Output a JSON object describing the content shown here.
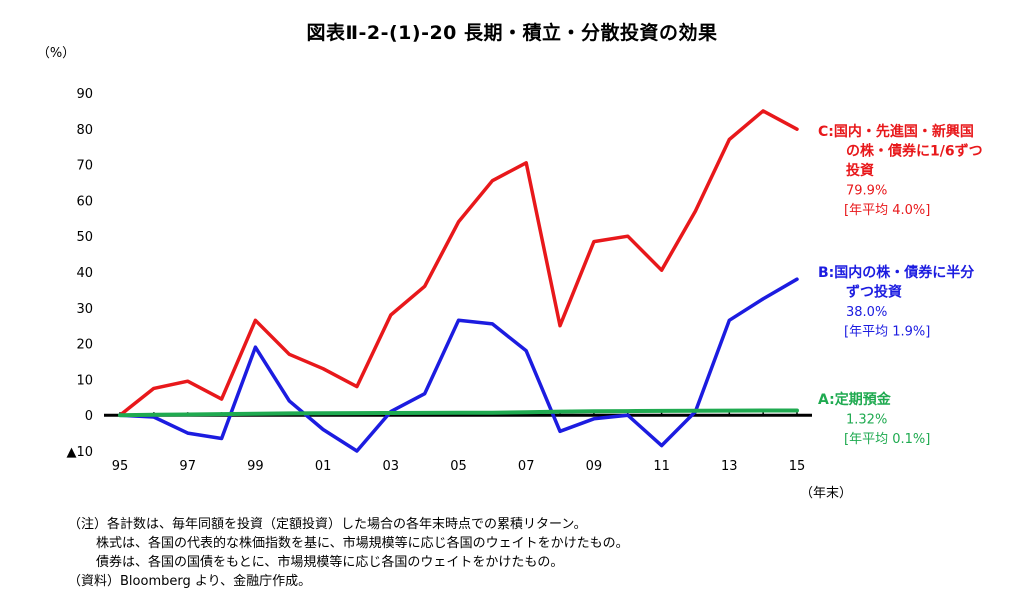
{
  "chart_data": {
    "type": "line",
    "title": "図表Ⅱ-2-(1)-20 長期・積立・分散投資の効果",
    "ylabel": "（%）",
    "xlabel": "（年末）",
    "ylim": [
      -10,
      90
    ],
    "y_ticks": [
      {
        "value": 90,
        "label": "90"
      },
      {
        "value": 80,
        "label": "80"
      },
      {
        "value": 70,
        "label": "70"
      },
      {
        "value": 60,
        "label": "60"
      },
      {
        "value": 50,
        "label": "50"
      },
      {
        "value": 40,
        "label": "40"
      },
      {
        "value": 30,
        "label": "30"
      },
      {
        "value": 20,
        "label": "20"
      },
      {
        "value": 10,
        "label": "10"
      },
      {
        "value": 0,
        "label": "0"
      },
      {
        "value": -10,
        "label": "▲10"
      }
    ],
    "x": [
      1995,
      1996,
      1997,
      1998,
      1999,
      2000,
      2001,
      2002,
      2003,
      2004,
      2005,
      2006,
      2007,
      2008,
      2009,
      2010,
      2011,
      2012,
      2013,
      2014,
      2015
    ],
    "x_ticks": [
      {
        "value": 1995,
        "label": "95"
      },
      {
        "value": 1997,
        "label": "97"
      },
      {
        "value": 1999,
        "label": "99"
      },
      {
        "value": 2001,
        "label": "01"
      },
      {
        "value": 2003,
        "label": "03"
      },
      {
        "value": 2005,
        "label": "05"
      },
      {
        "value": 2007,
        "label": "07"
      },
      {
        "value": 2009,
        "label": "09"
      },
      {
        "value": 2011,
        "label": "11"
      },
      {
        "value": 2013,
        "label": "13"
      },
      {
        "value": 2015,
        "label": "15"
      }
    ],
    "series": [
      {
        "key": "C",
        "color": "#e8181b",
        "values": [
          0,
          7.5,
          9.5,
          4.5,
          26.5,
          17,
          13,
          8,
          28,
          36,
          54,
          65.5,
          70.5,
          25,
          48.5,
          50,
          40.5,
          57,
          77,
          85,
          79.9
        ],
        "label_lines": [
          "C:国内・先進国・新興国",
          "の株・債券に1/6ずつ",
          "投資"
        ],
        "value_label": "79.9%",
        "avg_label": "[年平均 4.0%]"
      },
      {
        "key": "B",
        "color": "#1c1ce0",
        "values": [
          0,
          -0.5,
          -5,
          -6.5,
          19,
          4,
          -4,
          -10,
          1,
          6,
          26.5,
          25.5,
          18,
          -4.5,
          -1,
          0,
          -8.5,
          1,
          26.5,
          32.5,
          38
        ],
        "label_lines": [
          "B:国内の株・債券に半分",
          "ずつ投資"
        ],
        "value_label": "38.0%",
        "avg_label": "[年平均 1.9%]"
      },
      {
        "key": "A",
        "color": "#1faa50",
        "values": [
          0,
          0.1,
          0.2,
          0.3,
          0.4,
          0.5,
          0.55,
          0.6,
          0.62,
          0.64,
          0.66,
          0.7,
          0.8,
          1.0,
          1.1,
          1.15,
          1.2,
          1.25,
          1.28,
          1.3,
          1.32
        ],
        "label_lines": [
          "A:定期預金"
        ],
        "value_label": "1.32%",
        "avg_label": "[年平均 0.1%]"
      }
    ]
  },
  "notes": {
    "line1": "（注）各計数は、毎年同額を投資（定額投資）した場合の各年末時点での累積リターン。",
    "line2": "株式は、各国の代表的な株価指数を基に、市場規模等に応じ各国のウェイトをかけたもの。",
    "line3": "債券は、各国の国債をもとに、市場規模等に応じ各国のウェイトをかけたもの。",
    "line4": "（資料）Bloomberg より、金融庁作成。"
  }
}
